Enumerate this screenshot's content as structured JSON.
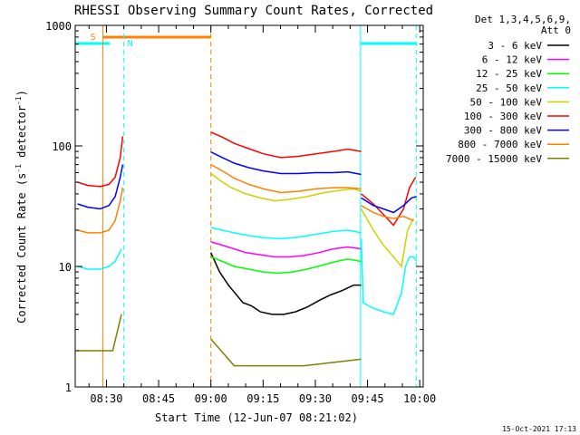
{
  "chart_data": {
    "type": "line",
    "title": "RHESSI Observing Summary Count Rates, Corrected",
    "xlabel": "Start Time (12-Jun-07 08:21:02)",
    "ylabel_main": "Corrected Count Rate (s",
    "ylabel_sup1": "-1",
    "ylabel_mid": " detector",
    "ylabel_sup2": "-1",
    "ylabel_end": ")",
    "yscale": "log",
    "ylim": [
      1,
      1000
    ],
    "xlim": [
      "08:21:02",
      "10:01:00"
    ],
    "y_ticks": [
      "1",
      "10",
      "100",
      "1000"
    ],
    "x_ticks": [
      "08:30",
      "08:45",
      "09:00",
      "09:15",
      "09:30",
      "09:45",
      "10:00"
    ],
    "legend_header": [
      "Det 1,3,4,5,6,9,",
      "Att 0"
    ],
    "footer_date": "15-Oct-2021 17:13",
    "markers": {
      "saa_label": "S",
      "night_label": "N",
      "saa_color": "#ff8000",
      "night_color": "#00ffff",
      "saa_bar": [
        "08:29",
        "09:00"
      ],
      "night_bars": [
        [
          "08:21",
          "08:31"
        ],
        [
          "09:43",
          "09:59"
        ]
      ],
      "saa_lines": [
        {
          "t": "08:29",
          "style": "solid"
        },
        {
          "t": "09:00",
          "style": "dashed"
        }
      ],
      "night_lines": [
        {
          "t": "08:35",
          "style": "dashed"
        },
        {
          "t": "09:43",
          "style": "solid"
        },
        {
          "t": "09:59",
          "style": "dashed"
        }
      ]
    },
    "series": [
      {
        "name": "3 - 6 keV",
        "color": "#000000",
        "pre": [],
        "post": [
          [
            9.2,
            13
          ],
          [
            9.35,
            9
          ],
          [
            9.5,
            7
          ],
          [
            9.75,
            5
          ],
          [
            9.9,
            4.7
          ],
          [
            10.05,
            4.2
          ],
          [
            10.25,
            4.0
          ],
          [
            10.45,
            4.0
          ],
          [
            10.65,
            4.2
          ],
          [
            10.85,
            4.6
          ],
          [
            11.05,
            5.2
          ],
          [
            11.25,
            5.8
          ],
          [
            11.45,
            6.3
          ],
          [
            11.65,
            7
          ],
          [
            11.78,
            7
          ]
        ],
        "tail": []
      },
      {
        "name": "6 - 12 keV",
        "color": "#ff00ff",
        "pre": [],
        "post": [
          [
            9.2,
            16
          ],
          [
            9.4,
            15
          ],
          [
            9.6,
            14
          ],
          [
            9.8,
            13
          ],
          [
            10.05,
            12.5
          ],
          [
            10.3,
            12
          ],
          [
            10.55,
            12
          ],
          [
            10.8,
            12.3
          ],
          [
            11.05,
            13
          ],
          [
            11.3,
            14
          ],
          [
            11.55,
            14.5
          ],
          [
            11.78,
            14
          ]
        ],
        "tail": []
      },
      {
        "name": "12 - 25 keV",
        "color": "#00ff00",
        "pre": [],
        "post": [
          [
            9.2,
            12
          ],
          [
            9.4,
            11
          ],
          [
            9.6,
            10
          ],
          [
            9.85,
            9.5
          ],
          [
            10.1,
            9
          ],
          [
            10.35,
            8.8
          ],
          [
            10.6,
            9
          ],
          [
            10.85,
            9.5
          ],
          [
            11.1,
            10.2
          ],
          [
            11.35,
            11
          ],
          [
            11.55,
            11.5
          ],
          [
            11.78,
            11
          ]
        ],
        "tail": []
      },
      {
        "name": "25 - 50 keV",
        "color": "#00ffff",
        "pre": [
          [
            0.02,
            10
          ],
          [
            0.1,
            9.5
          ],
          [
            0.2,
            9.5
          ],
          [
            0.27,
            10
          ],
          [
            0.32,
            11
          ],
          [
            0.37,
            14
          ]
        ],
        "post": [
          [
            9.2,
            21
          ],
          [
            9.4,
            20
          ],
          [
            9.6,
            19
          ],
          [
            9.85,
            18
          ],
          [
            10.1,
            17.3
          ],
          [
            10.4,
            17
          ],
          [
            10.7,
            17.5
          ],
          [
            11.0,
            18.5
          ],
          [
            11.3,
            19.5
          ],
          [
            11.55,
            20
          ],
          [
            11.78,
            19
          ]
        ],
        "tail": [
          [
            11.78,
            17
          ],
          [
            11.8,
            5
          ],
          [
            11.9,
            4.5
          ],
          [
            12.0,
            4.2
          ],
          [
            12.1,
            4.0
          ],
          [
            12.18,
            6
          ],
          [
            12.22,
            10
          ],
          [
            12.26,
            12
          ],
          [
            12.3,
            12
          ],
          [
            12.33,
            11
          ]
        ]
      },
      {
        "name": "50 - 100 keV",
        "color": "#d0d000",
        "pre": [],
        "post": [
          [
            9.2,
            59
          ],
          [
            9.35,
            52
          ],
          [
            9.55,
            45
          ],
          [
            9.8,
            40
          ],
          [
            10.05,
            37
          ],
          [
            10.3,
            35
          ],
          [
            10.55,
            36
          ],
          [
            10.85,
            38
          ],
          [
            11.15,
            41
          ],
          [
            11.45,
            43
          ],
          [
            11.65,
            44
          ],
          [
            11.78,
            42
          ]
        ],
        "tail": [
          [
            11.78,
            30
          ],
          [
            11.9,
            20
          ],
          [
            12.0,
            15
          ],
          [
            12.1,
            12
          ],
          [
            12.18,
            10
          ],
          [
            12.24,
            20
          ],
          [
            12.3,
            25
          ]
        ]
      },
      {
        "name": "100 - 300 keV",
        "color": "#ff0000",
        "pre": [
          [
            0.02,
            50
          ],
          [
            0.1,
            47
          ],
          [
            0.2,
            46
          ],
          [
            0.27,
            48
          ],
          [
            0.32,
            55
          ],
          [
            0.36,
            80
          ],
          [
            0.38,
            120
          ]
        ],
        "post": [
          [
            9.2,
            130
          ],
          [
            9.4,
            118
          ],
          [
            9.6,
            105
          ],
          [
            9.85,
            95
          ],
          [
            10.1,
            86
          ],
          [
            10.4,
            80
          ],
          [
            10.7,
            82
          ],
          [
            11.0,
            86
          ],
          [
            11.3,
            90
          ],
          [
            11.55,
            94
          ],
          [
            11.78,
            90
          ]
        ],
        "tail": [
          [
            11.78,
            40
          ],
          [
            11.9,
            33
          ],
          [
            12.0,
            27
          ],
          [
            12.1,
            22
          ],
          [
            12.2,
            30
          ],
          [
            12.26,
            45
          ],
          [
            12.32,
            55
          ]
        ]
      },
      {
        "name": "300 - 800 keV",
        "color": "#0000ff",
        "pre": [
          [
            0.02,
            33
          ],
          [
            0.1,
            31
          ],
          [
            0.2,
            30
          ],
          [
            0.27,
            32
          ],
          [
            0.32,
            38
          ],
          [
            0.36,
            55
          ],
          [
            0.38,
            70
          ]
        ],
        "post": [
          [
            9.2,
            89
          ],
          [
            9.4,
            80
          ],
          [
            9.6,
            72
          ],
          [
            9.85,
            66
          ],
          [
            10.1,
            62
          ],
          [
            10.4,
            59
          ],
          [
            10.7,
            59
          ],
          [
            11.0,
            60
          ],
          [
            11.3,
            60
          ],
          [
            11.55,
            61
          ],
          [
            11.78,
            58
          ]
        ],
        "tail": [
          [
            11.78,
            37
          ],
          [
            11.9,
            32
          ],
          [
            12.0,
            30
          ],
          [
            12.1,
            28
          ],
          [
            12.2,
            32
          ],
          [
            12.28,
            37
          ],
          [
            12.33,
            38
          ]
        ]
      },
      {
        "name": "800 - 7000 keV",
        "color": "#ff8000",
        "pre": [
          [
            0.02,
            20
          ],
          [
            0.1,
            19
          ],
          [
            0.2,
            19
          ],
          [
            0.27,
            20
          ],
          [
            0.32,
            24
          ],
          [
            0.36,
            35
          ],
          [
            0.38,
            45
          ]
        ],
        "post": [
          [
            9.2,
            70
          ],
          [
            9.4,
            62
          ],
          [
            9.6,
            54
          ],
          [
            9.85,
            48
          ],
          [
            10.1,
            44
          ],
          [
            10.4,
            41
          ],
          [
            10.7,
            42
          ],
          [
            11.0,
            44
          ],
          [
            11.3,
            45
          ],
          [
            11.55,
            45
          ],
          [
            11.78,
            44
          ]
        ],
        "tail": [
          [
            11.78,
            32
          ],
          [
            11.9,
            28
          ],
          [
            12.0,
            26
          ],
          [
            12.1,
            25
          ],
          [
            12.2,
            26
          ],
          [
            12.3,
            24
          ]
        ]
      },
      {
        "name": "7000 - 15000 keV",
        "color": "#808000",
        "pre": [
          [
            0.02,
            2
          ],
          [
            0.2,
            2
          ],
          [
            0.3,
            2
          ],
          [
            0.37,
            4
          ]
        ],
        "post": [
          [
            9.2,
            2.5
          ],
          [
            9.6,
            1.5
          ],
          [
            10.2,
            1.5
          ],
          [
            10.8,
            1.5
          ],
          [
            11.3,
            1.6
          ],
          [
            11.78,
            1.7
          ]
        ],
        "tail": []
      }
    ]
  }
}
